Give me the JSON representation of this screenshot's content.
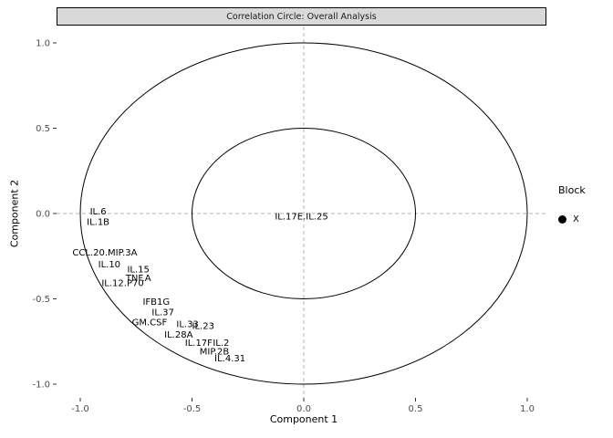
{
  "strip": {
    "title": "Correlation Circle: Overall Analysis",
    "background": "#d9d9d9",
    "border_color": "#000000"
  },
  "axes": {
    "xlabel": "Component 1",
    "ylabel": "Component 2",
    "x_ticks": [
      {
        "value": -1.0,
        "label": "-1.0"
      },
      {
        "value": -0.5,
        "label": "-0.5"
      },
      {
        "value": 0.0,
        "label": "0.0"
      },
      {
        "value": 0.5,
        "label": "0.5"
      },
      {
        "value": 1.0,
        "label": "1.0"
      }
    ],
    "y_ticks": [
      {
        "value": -1.0,
        "label": "-1.0"
      },
      {
        "value": -0.5,
        "label": "-0.5"
      },
      {
        "value": 0.0,
        "label": "0.0"
      },
      {
        "value": 0.5,
        "label": "0.5"
      },
      {
        "value": 1.0,
        "label": "1.0"
      }
    ]
  },
  "legend": {
    "title": "Block",
    "items": [
      {
        "label": "X",
        "marker": "filled-circle",
        "marker_color": "#000000"
      }
    ]
  },
  "chart_data": {
    "type": "scatter",
    "title": "Correlation Circle: Overall Analysis",
    "xlabel": "Component 1",
    "ylabel": "Component 2",
    "xlim": [
      -1.1,
      1.1
    ],
    "ylim": [
      -1.1,
      1.1
    ],
    "grid": false,
    "legend_position": "right",
    "reference_lines": {
      "x": 0,
      "y": 0,
      "style": "dashed",
      "color": "#b3b3b3"
    },
    "circle_radii": [
      1.0,
      0.5
    ],
    "series": [
      {
        "name": "X",
        "marker_color": "#000000",
        "points": [
          {
            "label": "IL.6",
            "x": -0.92,
            "y": 0.01
          },
          {
            "label": "IL.1B",
            "x": -0.92,
            "y": -0.05
          },
          {
            "label": "CCL.20.MIP.3A",
            "x": -0.89,
            "y": -0.23
          },
          {
            "label": "IL.10",
            "x": -0.87,
            "y": -0.3
          },
          {
            "label": "IL.15",
            "x": -0.74,
            "y": -0.33
          },
          {
            "label": "TNF.A",
            "x": -0.74,
            "y": -0.38
          },
          {
            "label": "IL.12.P70",
            "x": -0.81,
            "y": -0.41
          },
          {
            "label": "IFB1G",
            "x": -0.66,
            "y": -0.52
          },
          {
            "label": "IL.37",
            "x": -0.63,
            "y": -0.58
          },
          {
            "label": "GM.CSF",
            "x": -0.69,
            "y": -0.64
          },
          {
            "label": "IL.33",
            "x": -0.52,
            "y": -0.65
          },
          {
            "label": "IL.28A",
            "x": -0.56,
            "y": -0.71
          },
          {
            "label": "IL.23",
            "x": -0.45,
            "y": -0.66
          },
          {
            "label": "IL.17F",
            "x": -0.47,
            "y": -0.76
          },
          {
            "label": "IL.2",
            "x": -0.37,
            "y": -0.76
          },
          {
            "label": "MIP.2B",
            "x": -0.4,
            "y": -0.81
          },
          {
            "label": "IL.4.31",
            "x": -0.33,
            "y": -0.85
          },
          {
            "label": "IL.17E.IL.25",
            "x": -0.01,
            "y": -0.02
          }
        ]
      }
    ]
  }
}
